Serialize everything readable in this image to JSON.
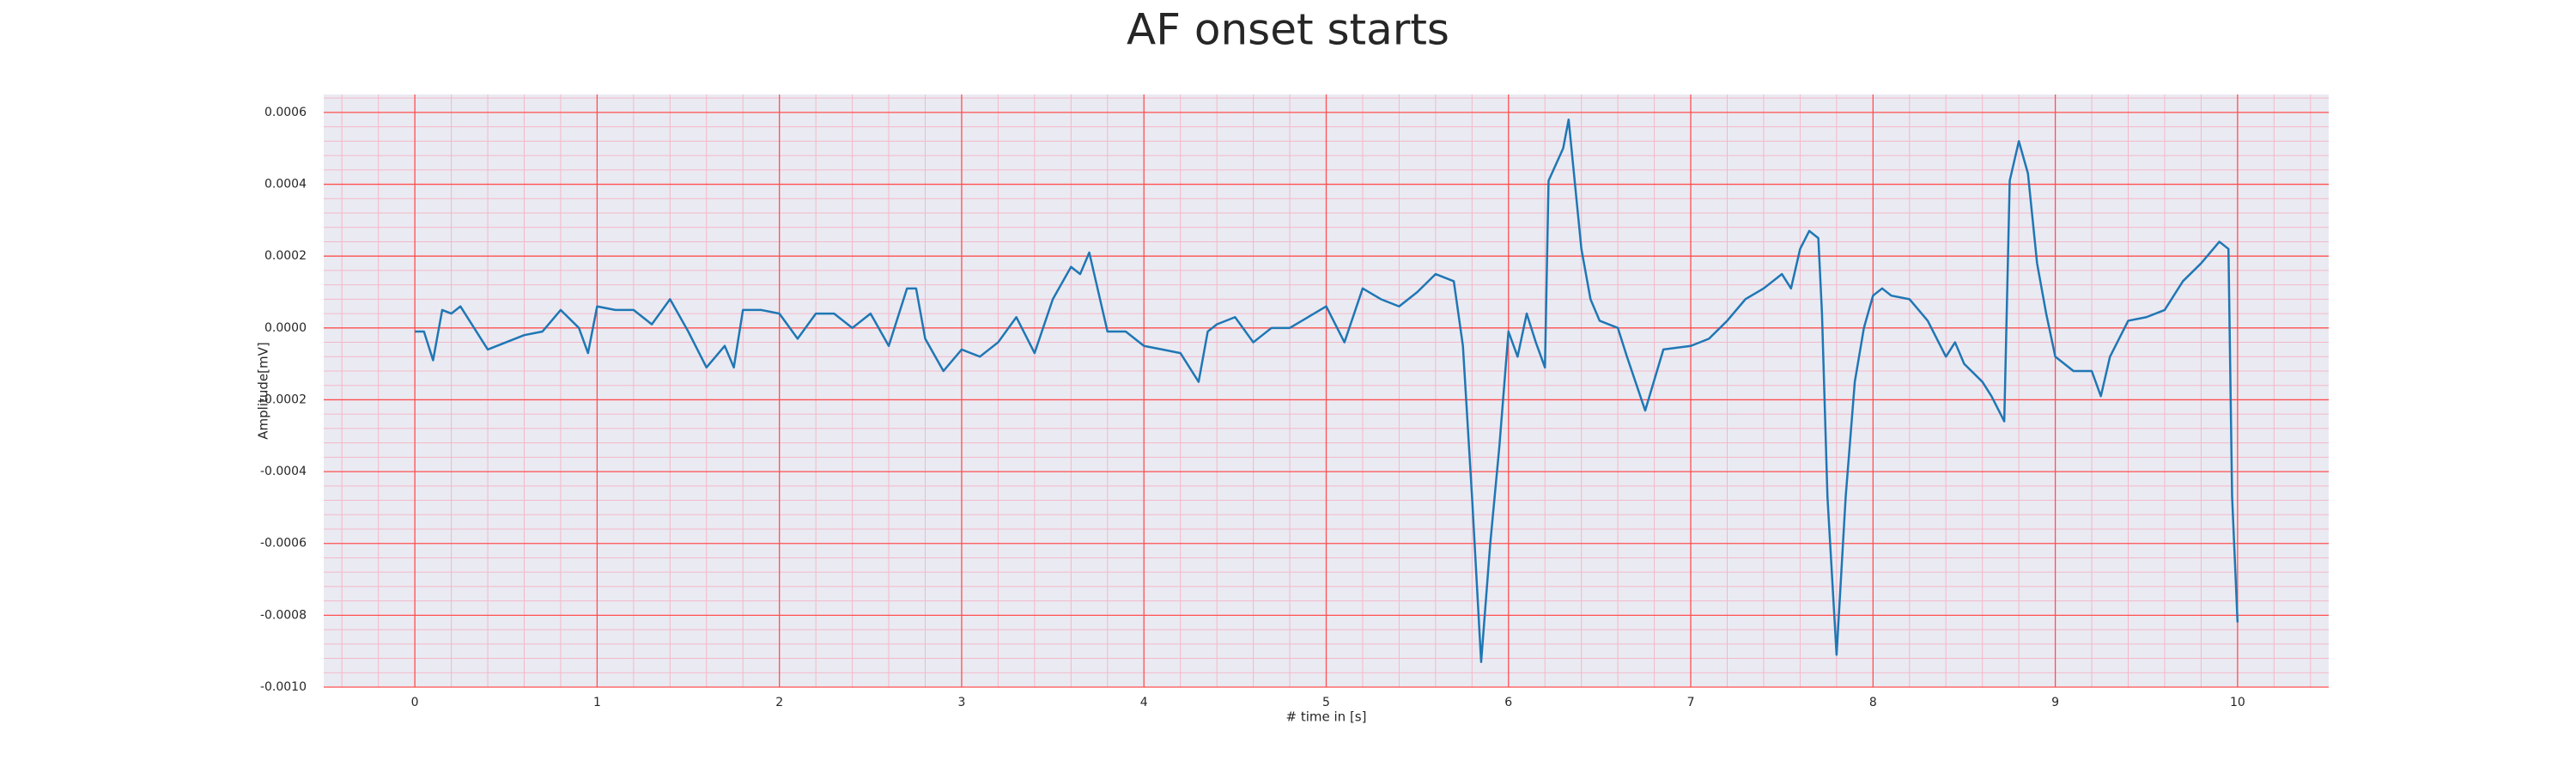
{
  "chart_data": {
    "type": "line",
    "title": "AF onset starts",
    "xlabel": "# time in [s]",
    "ylabel": "Amplitude[mV]",
    "x": [
      0,
      0.05,
      0.1,
      0.15,
      0.2,
      0.25,
      0.3,
      0.4,
      0.5,
      0.6,
      0.7,
      0.8,
      0.9,
      0.95,
      1.0,
      1.1,
      1.2,
      1.3,
      1.4,
      1.5,
      1.6,
      1.7,
      1.75,
      1.8,
      1.9,
      2.0,
      2.1,
      2.2,
      2.3,
      2.4,
      2.5,
      2.6,
      2.7,
      2.75,
      2.8,
      2.9,
      3.0,
      3.1,
      3.2,
      3.3,
      3.4,
      3.5,
      3.6,
      3.65,
      3.7,
      3.75,
      3.8,
      3.9,
      4.0,
      4.1,
      4.2,
      4.3,
      4.35,
      4.4,
      4.5,
      4.6,
      4.7,
      4.8,
      4.9,
      5.0,
      5.1,
      5.2,
      5.3,
      5.4,
      5.5,
      5.6,
      5.7,
      5.75,
      5.8,
      5.85,
      5.9,
      5.95,
      6.0,
      6.05,
      6.1,
      6.15,
      6.2,
      6.22,
      6.3,
      6.33,
      6.4,
      6.45,
      6.5,
      6.6,
      6.65,
      6.75,
      6.85,
      7.0,
      7.1,
      7.2,
      7.3,
      7.4,
      7.5,
      7.55,
      7.6,
      7.65,
      7.7,
      7.72,
      7.75,
      7.8,
      7.85,
      7.9,
      7.95,
      8.0,
      8.05,
      8.1,
      8.2,
      8.3,
      8.4,
      8.45,
      8.5,
      8.6,
      8.65,
      8.7,
      8.72,
      8.75,
      8.8,
      8.85,
      8.9,
      8.95,
      9.0,
      9.1,
      9.2,
      9.25,
      9.3,
      9.4,
      9.5,
      9.6,
      9.7,
      9.8,
      9.9,
      9.95,
      9.97,
      10.0
    ],
    "values": [
      -1e-05,
      -1e-05,
      -9e-05,
      5e-05,
      4e-05,
      6e-05,
      2e-05,
      -6e-05,
      -4e-05,
      -2e-05,
      -1e-05,
      5e-05,
      0,
      -7e-05,
      6e-05,
      5e-05,
      5e-05,
      1e-05,
      8e-05,
      -1e-05,
      -0.00011,
      -5e-05,
      -0.00011,
      5e-05,
      5e-05,
      4e-05,
      -3e-05,
      4e-05,
      4e-05,
      0,
      4e-05,
      -5e-05,
      0.00011,
      0.00011,
      -3e-05,
      -0.00012,
      -6e-05,
      -8e-05,
      -4e-05,
      3e-05,
      -7e-05,
      8e-05,
      0.00017,
      0.00015,
      0.00021,
      0.0001,
      -1e-05,
      -1e-05,
      -5e-05,
      -6e-05,
      -7e-05,
      -0.00015,
      -1e-05,
      1e-05,
      3e-05,
      -4e-05,
      0,
      0,
      3e-05,
      6e-05,
      -4e-05,
      0.00011,
      8e-05,
      6e-05,
      0.0001,
      0.00015,
      0.00013,
      -5e-05,
      -0.00047,
      -0.00093,
      -0.0006,
      -0.00033,
      -1e-05,
      -8e-05,
      4e-05,
      -4e-05,
      -0.00011,
      0.00041,
      0.0005,
      0.00058,
      0.00022,
      8e-05,
      2e-05,
      0,
      -8e-05,
      -0.00023,
      -6e-05,
      -5e-05,
      -3e-05,
      2e-05,
      8e-05,
      0.00011,
      0.00015,
      0.00011,
      0.00022,
      0.00027,
      0.00025,
      4e-05,
      -0.00047,
      -0.00091,
      -0.00047,
      -0.00015,
      0,
      9e-05,
      0.00011,
      9e-05,
      8e-05,
      2e-05,
      -8e-05,
      -4e-05,
      -0.0001,
      -0.00015,
      -0.00019,
      -0.00024,
      -0.00026,
      0.00041,
      0.00052,
      0.00043,
      0.00018,
      4e-05,
      -8e-05,
      -0.00012,
      -0.00012,
      -0.00019,
      -8e-05,
      2e-05,
      3e-05,
      5e-05,
      0.00013,
      0.00018,
      0.00024,
      0.00022,
      -0.00047,
      -0.00082
    ],
    "color": "#1f77b4",
    "xlim": [
      -0.5,
      10.5
    ],
    "xticks": [
      0,
      1,
      2,
      3,
      4,
      5,
      6,
      7,
      8,
      9,
      10
    ],
    "ylim": [
      -0.001,
      0.00065
    ],
    "yticks": [
      {
        "value": -0.001,
        "label": "-0.0010"
      },
      -0.0008,
      -0.0006,
      -0.0004,
      -0.0002,
      {
        "value": 0,
        "label": "0.0000"
      },
      0.0002,
      0.0004,
      0.0006
    ],
    "grid": true,
    "grid_color": "#ff5050",
    "minor_grid": true,
    "minor_grid_color": "#f4b8c8",
    "background": "#eaeaf2"
  }
}
